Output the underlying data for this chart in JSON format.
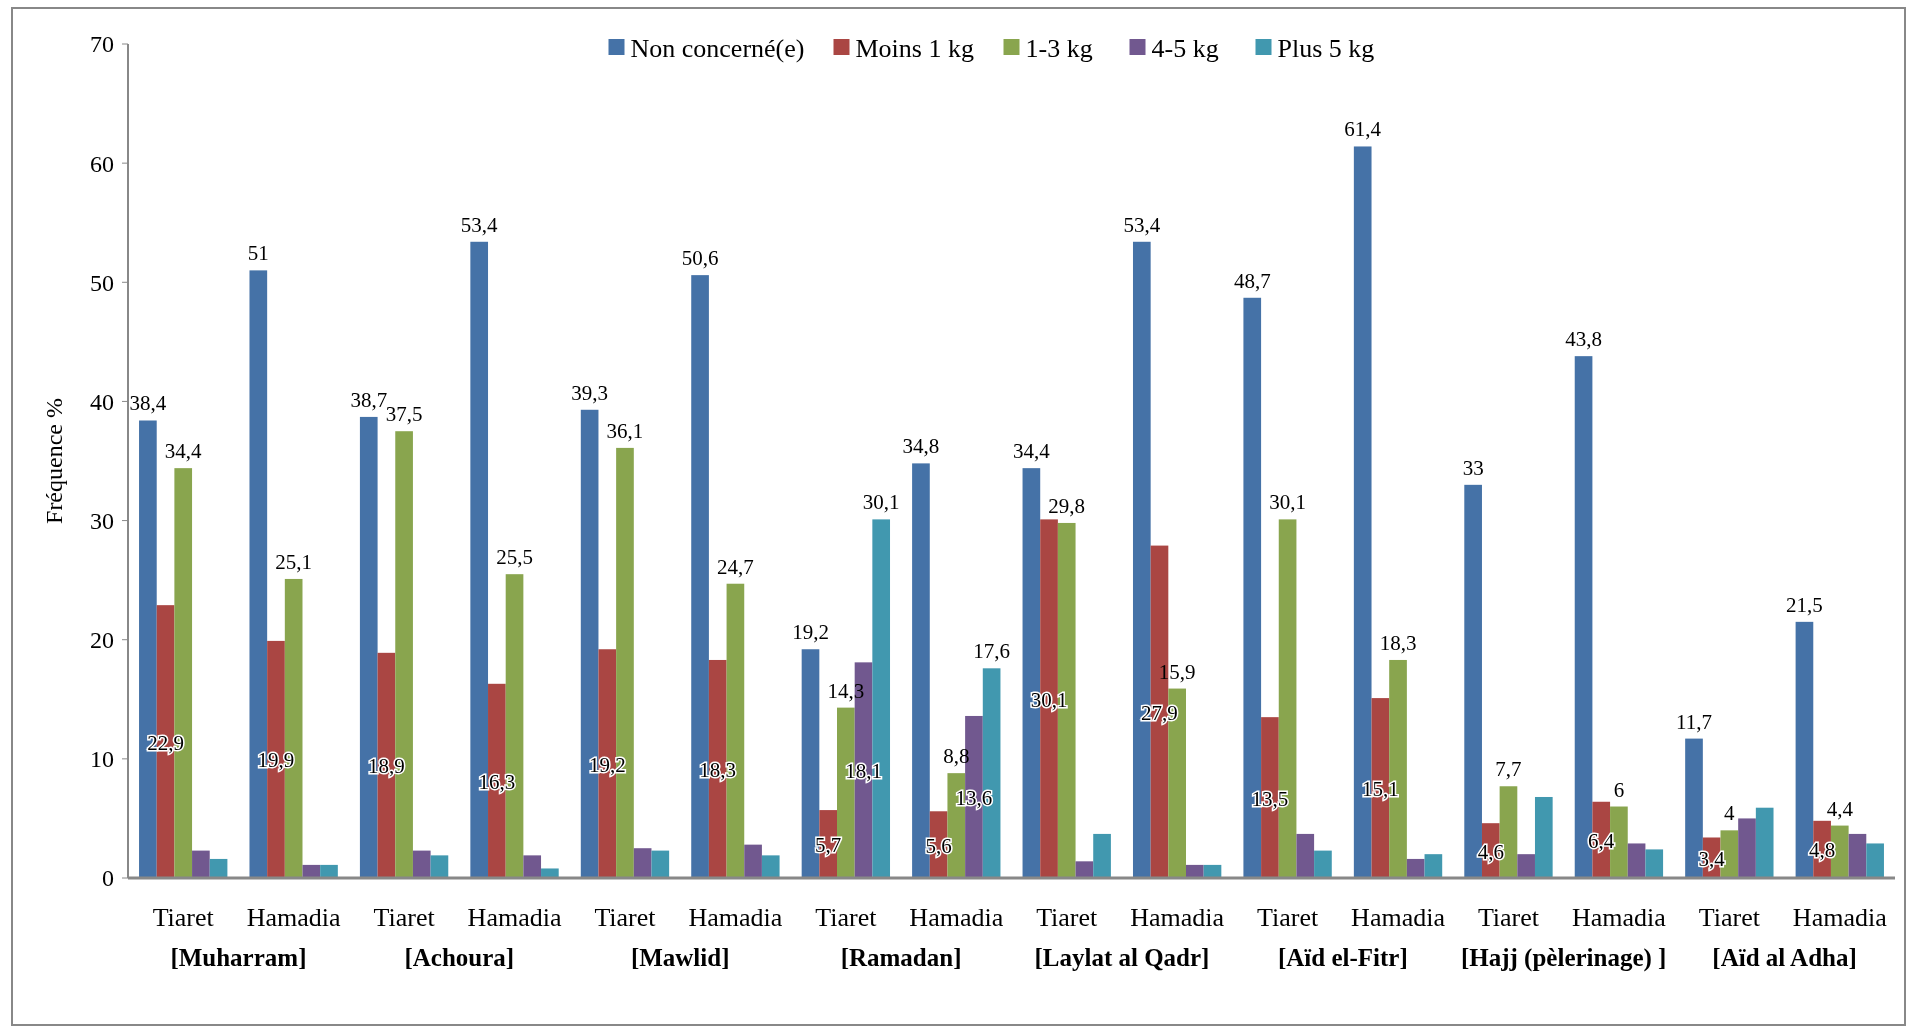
{
  "chart_data": {
    "type": "bar",
    "ylabel": "Fréquence %",
    "categories": [
      "Tiaret",
      "Hamadia",
      "Tiaret",
      "Hamadia",
      "Tiaret",
      "Hamadia",
      "Tiaret",
      "Hamadia",
      "Tiaret",
      "Hamadia",
      "Tiaret",
      "Hamadia",
      "Tiaret",
      "Hamadia",
      "Tiaret",
      "Hamadia"
    ],
    "annotations": [
      "[Muharram]",
      "[Achoura]",
      "[Mawlid]",
      "[Ramadan]",
      "[Laylat al Qadr]",
      "[Aïd el-Fitr]",
      "[Hajj (pèlerinage) ]",
      "[Aïd al Adha]"
    ],
    "series": [
      {
        "name": "Non concerné(e)",
        "color": "#4572a7",
        "values": [
          38.4,
          51,
          38.7,
          53.4,
          39.3,
          50.6,
          19.2,
          34.8,
          34.4,
          53.4,
          48.7,
          61.4,
          33,
          43.8,
          11.7,
          21.5
        ],
        "value_labels": [
          "38,4",
          "51",
          "38,7",
          "53,4",
          "39,3",
          "50,6",
          "19,2",
          "34,8",
          "34,4",
          "53,4",
          "48,7",
          "61,4",
          "33",
          "43,8",
          "11,7",
          "21,5"
        ]
      },
      {
        "name": "Moins 1 kg",
        "color": "#aa4643",
        "values": [
          22.9,
          19.9,
          18.9,
          16.3,
          19.2,
          18.3,
          5.7,
          5.6,
          30.1,
          27.9,
          13.5,
          15.1,
          4.6,
          6.4,
          3.4,
          4.8
        ],
        "value_labels": [
          "22,9",
          "19,9",
          "18,9",
          "16,3",
          "19,2",
          "18,3",
          "5,7",
          "5,6",
          "30,1",
          "27,9",
          "13,5",
          "15,1",
          "4,6",
          "6,4",
          "3,4",
          "4,8"
        ]
      },
      {
        "name": "1-3 kg",
        "color": "#89a54e",
        "values": [
          34.4,
          25.1,
          37.5,
          25.5,
          36.1,
          24.7,
          14.3,
          8.8,
          29.8,
          15.9,
          30.1,
          18.3,
          7.7,
          6,
          4,
          4.4
        ],
        "value_labels": [
          "34,4",
          "25,1",
          "37,5",
          "25,5",
          "36,1",
          "24,7",
          "14,3",
          "8,8",
          "29,8",
          "15,9",
          "30,1",
          "18,3",
          "7,7",
          "6",
          "4",
          "4,4"
        ]
      },
      {
        "name": "4-5 kg",
        "color": "#71588f",
        "values": [
          2.3,
          1.1,
          2.3,
          1.9,
          2.5,
          2.8,
          18.1,
          13.6,
          1.4,
          1.1,
          3.7,
          1.6,
          2.0,
          2.9,
          5.0,
          3.7
        ],
        "value_labels": [
          null,
          null,
          null,
          null,
          null,
          null,
          "18,1",
          "13,6",
          null,
          null,
          null,
          null,
          null,
          null,
          null,
          null
        ]
      },
      {
        "name": "Plus 5 kg",
        "color": "#4198af",
        "values": [
          1.6,
          1.1,
          1.9,
          0.8,
          2.3,
          1.9,
          30.1,
          17.6,
          3.7,
          1.1,
          2.3,
          2.0,
          6.8,
          2.4,
          5.9,
          2.9
        ],
        "value_labels": [
          null,
          null,
          null,
          null,
          null,
          null,
          "30,1",
          "17,6",
          null,
          null,
          null,
          null,
          null,
          null,
          null,
          null
        ]
      }
    ],
    "ylim": [
      0,
      70
    ],
    "yticks": [
      0,
      10,
      20,
      30,
      40,
      50,
      60,
      70
    ],
    "grid": false,
    "legend": "top"
  }
}
